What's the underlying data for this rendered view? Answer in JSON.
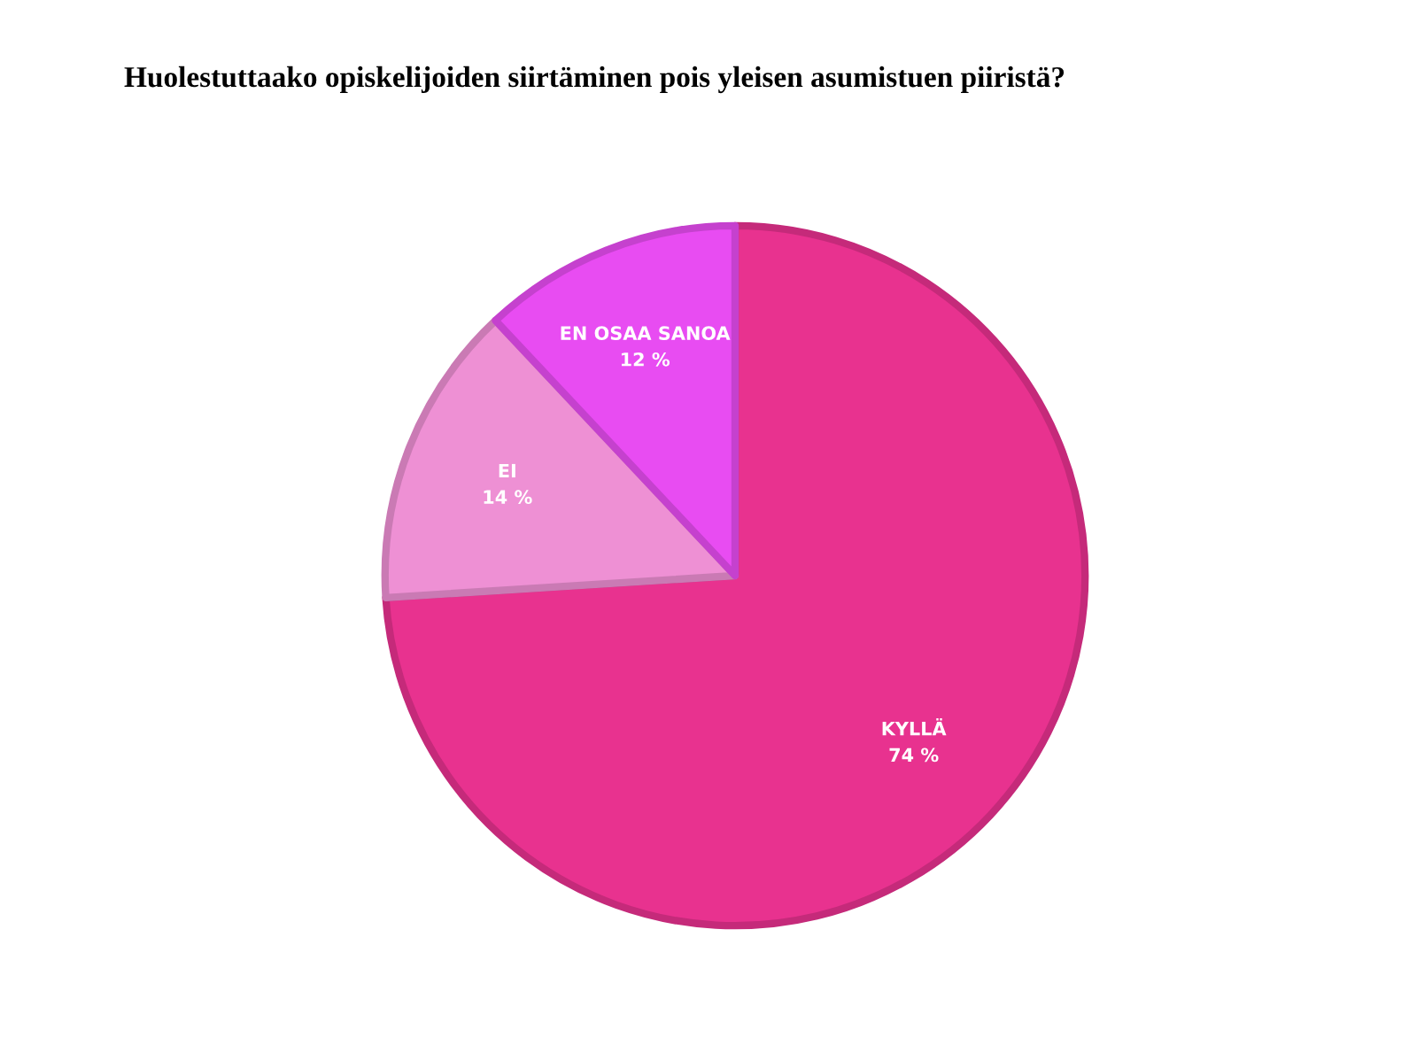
{
  "chart_data": {
    "type": "pie",
    "title": "Huolestuttaako opiskelijoiden siirtäminen pois yleisen asumistuen piiristä?",
    "categories": [
      "KYLLÄ",
      "EI",
      "EN OSAA SANOA"
    ],
    "values": [
      74,
      14,
      12
    ],
    "colors": [
      "#e8328f",
      "#ee90d4",
      "#e84cf2"
    ],
    "value_labels": [
      "74 %",
      "14 %",
      "12 %"
    ]
  }
}
